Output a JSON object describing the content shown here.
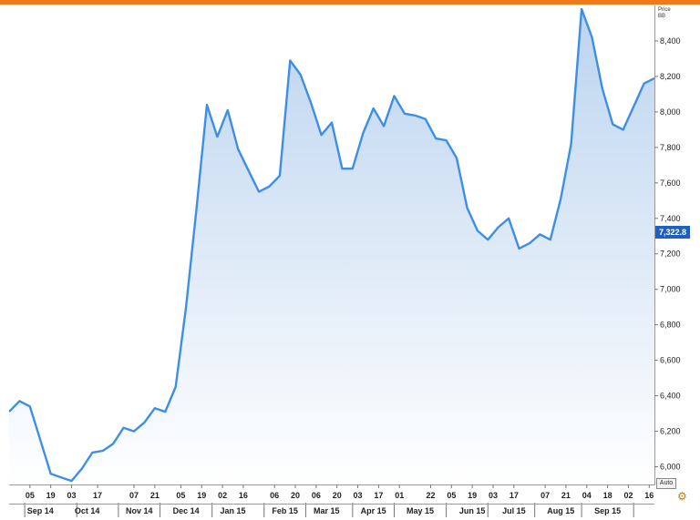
{
  "chart": {
    "price_label": "Price",
    "unit_label": "BB",
    "current_value": "7,322.8",
    "auto_label": "Auto"
  },
  "colors": {
    "line": "#3d8fe6",
    "fill_top": "#bcd4ef",
    "fill_bottom": "#ffffff",
    "badge": "#1f5fbf",
    "frame": "#f07a1a"
  },
  "icons": {
    "settings": "wrench-icon"
  },
  "chart_data": {
    "type": "area",
    "title": "",
    "xlabel": "",
    "ylabel": "Price",
    "ylim": [
      5900,
      8600
    ],
    "yticks": [
      6000,
      6200,
      6400,
      6600,
      6800,
      7000,
      7200,
      7400,
      7600,
      7800,
      8000,
      8200,
      8400
    ],
    "ytick_labels": [
      "6,000",
      "6,200",
      "6,400",
      "6,600",
      "6,800",
      "7,000",
      "7,200",
      "7,400",
      "7,600",
      "7,800",
      "8,000",
      "8,200",
      "8,400"
    ],
    "grid": false,
    "x_index_range": [
      0,
      55
    ],
    "x_day_ticks": [
      {
        "i": 2,
        "label": "05"
      },
      {
        "i": 4,
        "label": "19"
      },
      {
        "i": 6,
        "label": "03"
      },
      {
        "i": 8.5,
        "label": "17"
      },
      {
        "i": 12,
        "label": "07"
      },
      {
        "i": 14,
        "label": "21"
      },
      {
        "i": 16.5,
        "label": "05"
      },
      {
        "i": 18.5,
        "label": "19"
      },
      {
        "i": 20.5,
        "label": "02"
      },
      {
        "i": 22.5,
        "label": "16"
      },
      {
        "i": 25.5,
        "label": "06"
      },
      {
        "i": 27.5,
        "label": "20"
      },
      {
        "i": 29.5,
        "label": "06"
      },
      {
        "i": 31.5,
        "label": "20"
      },
      {
        "i": 33.5,
        "label": "03"
      },
      {
        "i": 35.5,
        "label": "17"
      },
      {
        "i": 37.5,
        "label": "01"
      },
      {
        "i": 40.5,
        "label": "22"
      },
      {
        "i": 42.5,
        "label": "05"
      },
      {
        "i": 44.5,
        "label": "19"
      },
      {
        "i": 46.5,
        "label": "03"
      },
      {
        "i": 48.5,
        "label": "17"
      },
      {
        "i": 51.5,
        "label": "07"
      },
      {
        "i": 53.5,
        "label": "21"
      },
      {
        "i": 55.5,
        "label": "04"
      },
      {
        "i": 57.5,
        "label": "18"
      },
      {
        "i": 59.5,
        "label": "02"
      },
      {
        "i": 61.5,
        "label": "16"
      }
    ],
    "x_month_labels": [
      {
        "i": 3,
        "label": "Sep 14"
      },
      {
        "i": 7.5,
        "label": "Oct 14"
      },
      {
        "i": 12.5,
        "label": "Nov 14"
      },
      {
        "i": 17,
        "label": "Dec 14"
      },
      {
        "i": 21.5,
        "label": "Jan 15"
      },
      {
        "i": 26.5,
        "label": "Feb 15"
      },
      {
        "i": 30.5,
        "label": "Mar 15"
      },
      {
        "i": 35,
        "label": "Apr 15"
      },
      {
        "i": 39.5,
        "label": "May 15"
      },
      {
        "i": 44.5,
        "label": "Jun 15"
      },
      {
        "i": 48.5,
        "label": "Jul 15"
      },
      {
        "i": 53,
        "label": "Aug 15"
      },
      {
        "i": 57.5,
        "label": "Sep 15"
      }
    ],
    "x_month_separators": [
      1.5,
      6.5,
      10.5,
      14.5,
      19.5,
      24.5,
      28.5,
      33,
      37,
      42,
      46,
      50.5,
      55,
      60
    ],
    "x_index_max": 62,
    "values": [
      6310,
      6370,
      6340,
      6150,
      5960,
      5940,
      5920,
      5990,
      6080,
      6090,
      6130,
      6220,
      6200,
      6250,
      6330,
      6310,
      6450,
      6900,
      7450,
      8040,
      7860,
      8010,
      7790,
      7670,
      7550,
      7580,
      7640,
      8290,
      8210,
      8050,
      7870,
      7940,
      7680,
      7680,
      7880,
      8020,
      7920,
      8090,
      7990,
      7980,
      7960,
      7850,
      7840,
      7740,
      7460,
      7330,
      7280,
      7350,
      7400,
      7230,
      7260,
      7310,
      7280,
      7510,
      7820,
      8580,
      8420,
      8130,
      7930,
      7900,
      8030,
      8160,
      8190
    ],
    "annotation_text": "",
    "current_value": 7322.8
  }
}
